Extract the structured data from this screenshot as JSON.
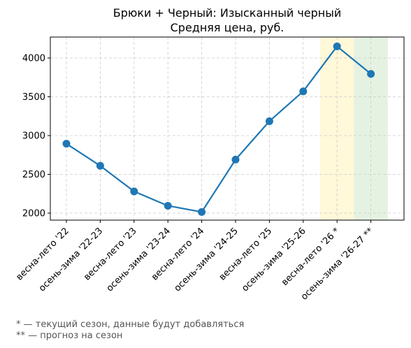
{
  "chart_data": {
    "type": "line",
    "title_line1": "Брюки + Черный: Изысканный черный",
    "title_line2": "Средняя цена, руб.",
    "xlabel": "",
    "ylabel": "",
    "categories": [
      "весна-лето '22",
      "осень-зима '22-23",
      "весна-лето '23",
      "осень-зима '23-24",
      "весна-лето '24",
      "осень-зима '24-25",
      "весна-лето '25",
      "осень-зима '25-26",
      "весна-лето '26 *",
      "осень-зима '26-27 **"
    ],
    "values": [
      2895,
      2610,
      2280,
      2095,
      2015,
      2690,
      3185,
      3570,
      4150,
      3795
    ],
    "ylim": [
      1910,
      4270
    ],
    "yticks": [
      2000,
      2500,
      3000,
      3500,
      4000
    ],
    "grid": true,
    "line_color": "#1f77b4",
    "highlights": [
      {
        "from_index": 8,
        "color": "#fff8d9",
        "meaning": "current season"
      },
      {
        "from_index": 9,
        "color": "#e5f2e2",
        "meaning": "forecast"
      }
    ]
  },
  "footnotes": {
    "current": "* — текущий сезон, данные будут добавляться",
    "forecast": "** — прогноз на сезон"
  }
}
